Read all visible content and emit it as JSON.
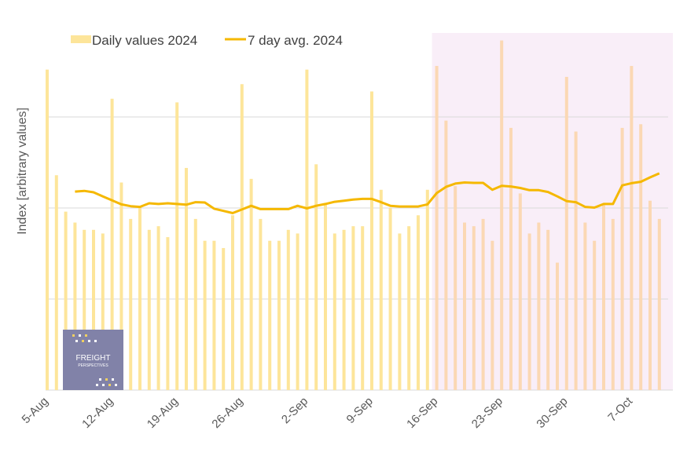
{
  "chart_data": {
    "type": "bar",
    "ylabel": "Index [arbitrary values]",
    "legend": {
      "placement": "top-left",
      "entries": [
        "Daily values 2024",
        "7 day avg. 2024"
      ]
    },
    "grid": true,
    "ylim": [
      0,
      100
    ],
    "x_tick_labels": [
      "5-Aug",
      "12-Aug",
      "19-Aug",
      "26-Aug",
      "2-Sep",
      "9-Sep",
      "16-Sep",
      "23-Sep",
      "30-Sep",
      "7-Oct"
    ],
    "highlight_start_index": 42,
    "colors": {
      "bars": "#fde59a",
      "bars_highlight": "#fbd8b4",
      "line": "#f5b800",
      "highlight_band": "#f9eef8",
      "grid": "#d9d9d9"
    },
    "series": [
      {
        "name": "Daily values 2024",
        "kind": "bar",
        "values": [
          88,
          59,
          49,
          46,
          44,
          44,
          43,
          80,
          57,
          47,
          50,
          44,
          45,
          42,
          79,
          61,
          47,
          41,
          41,
          39,
          48,
          84,
          58,
          47,
          41,
          41,
          44,
          43,
          88,
          62,
          51,
          43,
          44,
          45,
          45,
          82,
          55,
          50,
          43,
          45,
          48,
          55,
          89,
          74,
          56,
          46,
          45,
          47,
          41,
          96,
          72,
          54,
          43,
          46,
          44,
          35,
          86,
          71,
          46,
          41,
          51,
          47,
          72,
          89,
          73,
          52,
          47
        ]
      },
      {
        "name": "7 day avg. 2024",
        "kind": "line",
        "values": [
          null,
          null,
          null,
          54.5,
          54.7,
          54.3,
          53.2,
          52.1,
          51,
          50.5,
          50.3,
          51.3,
          51.1,
          51.3,
          51.1,
          50.9,
          51.6,
          51.5,
          49.8,
          49.2,
          48.6,
          49.6,
          50.6,
          49.7,
          49.7,
          49.7,
          49.7,
          50.6,
          49.9,
          50.6,
          51.1,
          51.7,
          52,
          52.3,
          52.5,
          52.5,
          51.6,
          50.6,
          50.4,
          50.4,
          50.4,
          51,
          54.1,
          55.8,
          56.7,
          57,
          56.9,
          56.9,
          55,
          56.1,
          55.9,
          55.5,
          54.9,
          54.9,
          54.4,
          53.2,
          51.9,
          51.6,
          50.3,
          50.1,
          51.1,
          51.1,
          56.2,
          56.8,
          57.2,
          58.4,
          59.5
        ]
      }
    ]
  },
  "logo": {
    "line1": "FREIGHT",
    "line2": "PERSPECTIVES"
  }
}
